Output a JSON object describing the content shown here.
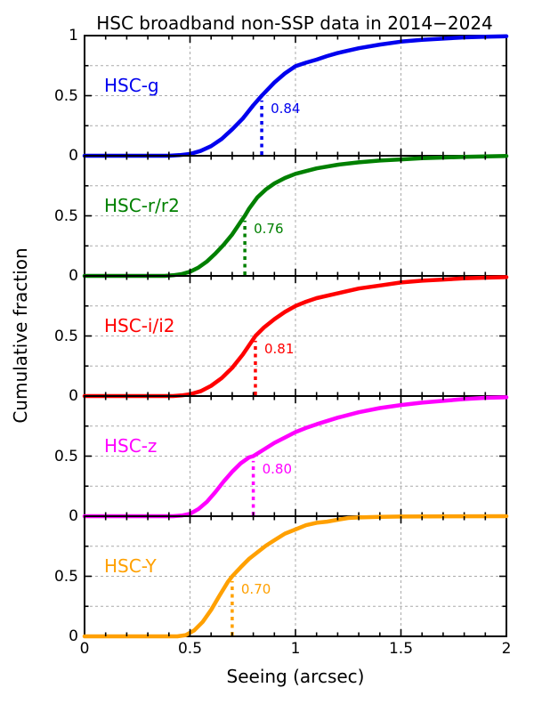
{
  "title": "HSC broadband non-SSP data in 2014−2024",
  "axes": {
    "xlabel": "Seeing (arcsec)",
    "ylabel": "Cumulative fraction",
    "x_tick_labels": [
      "0",
      "0.5",
      "1",
      "1.5",
      "2"
    ],
    "y_tick_labels": [
      "0",
      "0.5",
      "1"
    ]
  },
  "chart_data": {
    "type": "line",
    "title": "HSC broadband non-SSP data in 2014−2024",
    "xlabel": "Seeing (arcsec)",
    "ylabel": "Cumulative fraction",
    "xlim": [
      0,
      2
    ],
    "ylim": [
      0,
      1
    ],
    "x_ticks": [
      0,
      0.5,
      1,
      1.5,
      2
    ],
    "x_minor_tick_step": 0.1,
    "y_ticks": [
      0,
      0.5,
      1
    ],
    "y_minor_ticks": [
      0.25,
      0.75
    ],
    "grid": true,
    "grid_x": [
      0.5,
      1.0,
      1.5
    ],
    "grid_y": [
      0.25,
      0.5,
      0.75
    ],
    "layout": "5 stacked panels sharing the x axis",
    "panels": [
      {
        "band": "HSC-g",
        "color": "#0000ee",
        "median": 0.84,
        "median_label": "0.84",
        "x": [
          0,
          0.4,
          0.45,
          0.5,
          0.55,
          0.6,
          0.65,
          0.7,
          0.75,
          0.8,
          0.84,
          0.9,
          0.95,
          1.0,
          1.05,
          1.1,
          1.15,
          1.2,
          1.3,
          1.4,
          1.5,
          1.6,
          1.7,
          1.8,
          1.9,
          2.0
        ],
        "y": [
          0,
          0,
          0.005,
          0.015,
          0.04,
          0.08,
          0.14,
          0.22,
          0.31,
          0.42,
          0.5,
          0.61,
          0.685,
          0.745,
          0.775,
          0.8,
          0.83,
          0.855,
          0.895,
          0.925,
          0.95,
          0.965,
          0.975,
          0.985,
          0.99,
          0.995
        ]
      },
      {
        "band": "HSC-r/r2",
        "color": "#008000",
        "median": 0.76,
        "median_label": "0.76",
        "x": [
          0,
          0.38,
          0.42,
          0.46,
          0.5,
          0.54,
          0.58,
          0.62,
          0.66,
          0.7,
          0.74,
          0.76,
          0.78,
          0.82,
          0.86,
          0.9,
          0.95,
          1.0,
          1.1,
          1.2,
          1.3,
          1.4,
          1.5,
          1.6,
          1.7,
          1.8,
          1.9,
          2.0
        ],
        "y": [
          0,
          0,
          0.005,
          0.015,
          0.035,
          0.07,
          0.12,
          0.185,
          0.26,
          0.345,
          0.45,
          0.5,
          0.56,
          0.655,
          0.72,
          0.77,
          0.815,
          0.85,
          0.895,
          0.925,
          0.945,
          0.96,
          0.97,
          0.98,
          0.985,
          0.99,
          0.995,
          0.998
        ]
      },
      {
        "band": "HSC-i/i2",
        "color": "#ff0000",
        "median": 0.81,
        "median_label": "0.81",
        "x": [
          0,
          0.42,
          0.46,
          0.5,
          0.55,
          0.6,
          0.65,
          0.7,
          0.75,
          0.81,
          0.85,
          0.9,
          0.95,
          1.0,
          1.05,
          1.1,
          1.2,
          1.3,
          1.4,
          1.5,
          1.6,
          1.7,
          1.8,
          1.9,
          2.0
        ],
        "y": [
          0,
          0,
          0.005,
          0.015,
          0.04,
          0.085,
          0.15,
          0.235,
          0.345,
          0.5,
          0.57,
          0.64,
          0.7,
          0.75,
          0.785,
          0.815,
          0.855,
          0.895,
          0.92,
          0.945,
          0.96,
          0.97,
          0.98,
          0.985,
          0.99
        ]
      },
      {
        "band": "HSC-z",
        "color": "#ff00ff",
        "median": 0.8,
        "median_label": "0.80",
        "x": [
          0,
          0.42,
          0.46,
          0.5,
          0.54,
          0.58,
          0.62,
          0.66,
          0.7,
          0.74,
          0.78,
          0.8,
          0.85,
          0.9,
          0.95,
          1.0,
          1.05,
          1.1,
          1.2,
          1.3,
          1.4,
          1.5,
          1.6,
          1.7,
          1.8,
          1.9,
          2.0
        ],
        "y": [
          0,
          0,
          0.005,
          0.02,
          0.06,
          0.12,
          0.2,
          0.29,
          0.37,
          0.44,
          0.49,
          0.5,
          0.555,
          0.61,
          0.655,
          0.7,
          0.735,
          0.765,
          0.82,
          0.865,
          0.9,
          0.925,
          0.945,
          0.96,
          0.975,
          0.985,
          0.99
        ]
      },
      {
        "band": "HSC-Y",
        "color": "#ffa000",
        "median": 0.7,
        "median_label": "0.70",
        "x": [
          0,
          0.44,
          0.48,
          0.52,
          0.56,
          0.6,
          0.64,
          0.68,
          0.7,
          0.74,
          0.78,
          0.82,
          0.86,
          0.9,
          0.95,
          1.0,
          1.05,
          1.1,
          1.15,
          1.2,
          1.25,
          1.3,
          1.4,
          1.5,
          1.75,
          2.0
        ],
        "y": [
          0,
          0,
          0.01,
          0.05,
          0.12,
          0.22,
          0.34,
          0.455,
          0.5,
          0.575,
          0.645,
          0.7,
          0.755,
          0.8,
          0.855,
          0.89,
          0.925,
          0.945,
          0.955,
          0.97,
          0.985,
          0.99,
          0.995,
          0.997,
          0.999,
          1.0
        ]
      }
    ]
  },
  "style": {
    "axis_color": "#000000",
    "grid_color": "#aaaaaa",
    "background": "#ffffff"
  }
}
